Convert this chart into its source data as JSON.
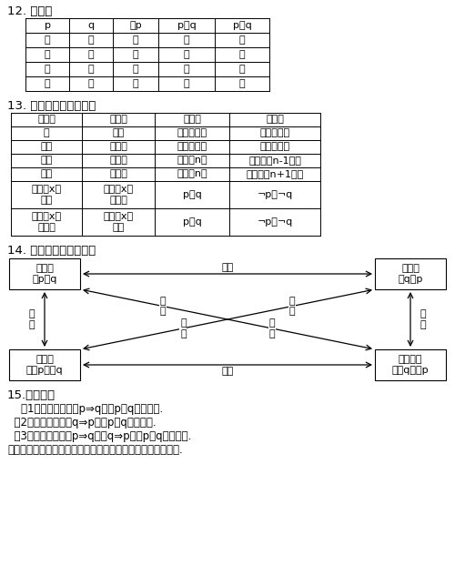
{
  "bg_color": "#ffffff",
  "text_color": "#000000",
  "title_12": "12. 真值表",
  "title_13": "13. 常见结论的否定形式",
  "title_14": "14. 四种命题的相互关系",
  "title_15": "15.充要条件",
  "truth_table_headers": [
    "p",
    "q",
    "非p",
    "p或q",
    "p且q"
  ],
  "truth_table_rows": [
    [
      "真",
      "真",
      "假",
      "真",
      "真"
    ],
    [
      "真",
      "假",
      "假",
      "真",
      "假"
    ],
    [
      "假",
      "真",
      "真",
      "真",
      "假"
    ],
    [
      "假",
      "假",
      "真",
      "假",
      "假"
    ]
  ],
  "negation_headers": [
    "原结论",
    "反设词",
    "原结论",
    "反设词"
  ],
  "negation_rows": [
    [
      "是",
      "不是",
      "至少有一个",
      "一个也没有"
    ],
    [
      "都是",
      "不都是",
      "至多有一个",
      "至少有两个"
    ],
    [
      "大于",
      "不大于",
      "至少有n个",
      "至多有（n-1）个"
    ],
    [
      "小于",
      "不小于",
      "至多有n个",
      "至少有（n+1）个"
    ],
    [
      "对所有x，\n成立",
      "存在某x，\n不成立",
      "p或q",
      "¬p且¬q"
    ],
    [
      "对任何x，\n不成立",
      "存在某x，\n成立",
      "p且q",
      "¬p或¬q"
    ]
  ],
  "section15_lines": [
    "    （1）充分条件：若p⇒q，则p是q充分条件.",
    "  （2）必要条件：若q⇒p，则p是q必要条件.",
    "  （3）充要条件：若p⇒q，且q⇒p，则p是q充要条件.",
    "注：如果甲是乙的充分条件，则乙是甲的必要条件；反之亦然."
  ],
  "box_tl": [
    "原命题",
    "若p则q"
  ],
  "box_tr": [
    "逆命题",
    "若q则p"
  ],
  "box_bl": [
    "否命题",
    "若非p则非q"
  ],
  "box_br": [
    "逆否命题",
    "若非q则非p"
  ],
  "arrow_top": "互逆",
  "arrow_bottom": "互逆",
  "arrow_left": "互\n否",
  "arrow_right": "互\n否",
  "diag_tl_br_top": "互",
  "diag_tl_br_mid": "为",
  "diag_tl_br_bot_top": "逆",
  "diag_tl_br_bot": "否",
  "diag_tr_bl_top": "互",
  "diag_tr_bl_mid": "为",
  "diag_tr_bl_bot_top": "逆",
  "diag_tr_bl_bot": "否"
}
